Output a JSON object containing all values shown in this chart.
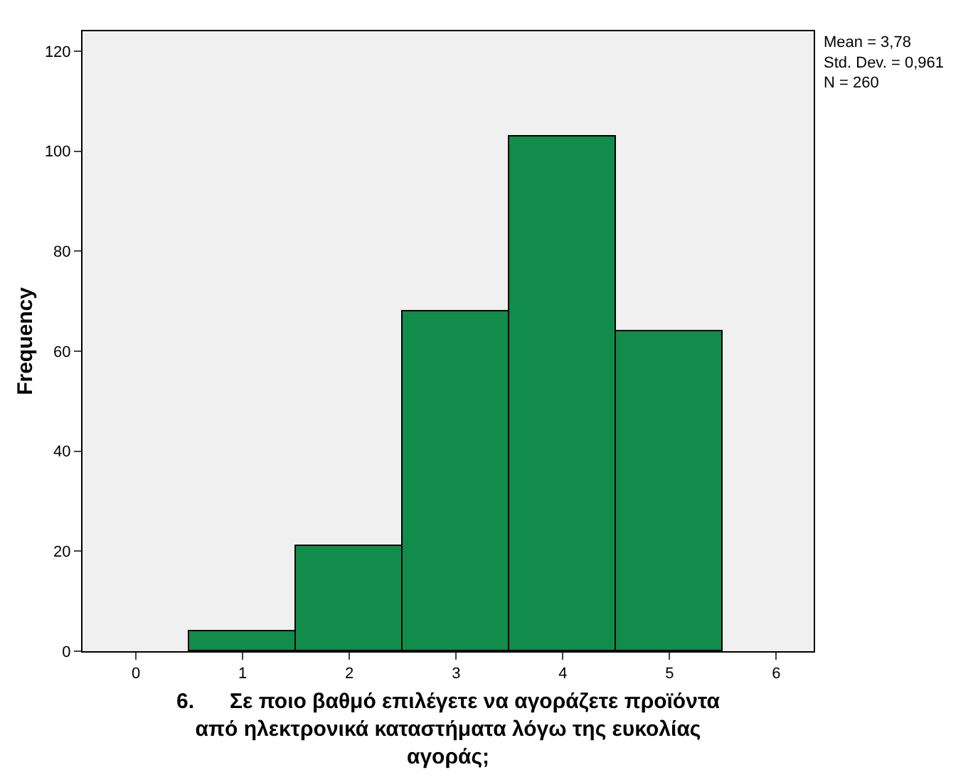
{
  "chart_data": {
    "type": "histogram",
    "xlabel": "6.      Σε ποιο βαθμό επιλέγετε να αγοράζετε προϊόντα\nαπό ηλεκτρονικά καταστήματα λόγω της ευκολίας\nαγοράς;",
    "ylabel": "Frequency",
    "bins": [
      0.5,
      1.5,
      2.5,
      3.5,
      4.5,
      5.5
    ],
    "values": [
      4,
      21,
      68,
      103,
      64
    ],
    "color": "#118c4a",
    "xlim": [
      -0.5,
      6.35
    ],
    "xticks": [
      0,
      1,
      2,
      3,
      4,
      5,
      6
    ],
    "ylim": [
      0,
      124
    ],
    "yticks": [
      0,
      20,
      40,
      60,
      80,
      100,
      120
    ],
    "grid": false,
    "annotations": [
      "Mean = 3,78\nStd. Dev. = 0,961\nN = 260"
    ]
  }
}
